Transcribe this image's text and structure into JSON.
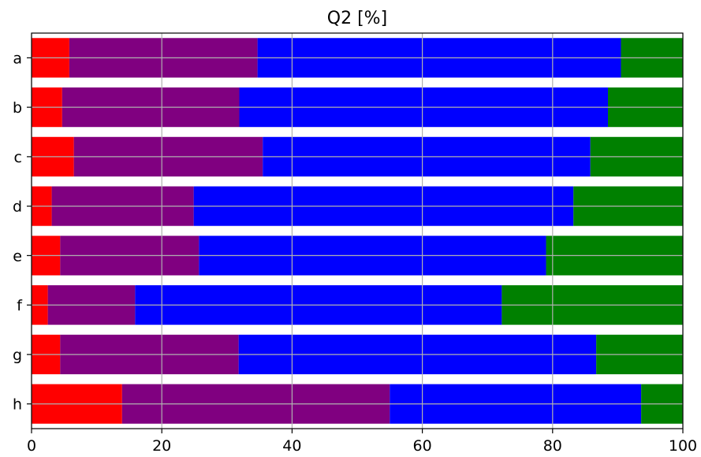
{
  "chart_data": {
    "type": "bar",
    "orientation": "horizontal",
    "stacked": true,
    "title": "Q2 [%]",
    "xlabel": "",
    "ylabel": "",
    "xlim": [
      0,
      100
    ],
    "xticks": [
      "0",
      "20",
      "40",
      "60",
      "80",
      "100"
    ],
    "categories": [
      "a",
      "b",
      "c",
      "d",
      "e",
      "f",
      "g",
      "h"
    ],
    "series": [
      {
        "color": "#ff0000",
        "values": [
          5.8,
          4.7,
          6.5,
          3.1,
          4.4,
          2.5,
          4.4,
          13.9
        ]
      },
      {
        "color": "#800080",
        "values": [
          28.9,
          27.2,
          29.0,
          21.8,
          21.3,
          13.4,
          27.4,
          41.1
        ]
      },
      {
        "color": "#0000ff",
        "values": [
          55.8,
          56.6,
          50.3,
          58.3,
          53.3,
          56.3,
          54.9,
          38.6
        ]
      },
      {
        "color": "#008000",
        "values": [
          9.5,
          11.5,
          14.2,
          16.8,
          21.0,
          27.8,
          13.3,
          6.4
        ]
      }
    ],
    "grid": true
  }
}
